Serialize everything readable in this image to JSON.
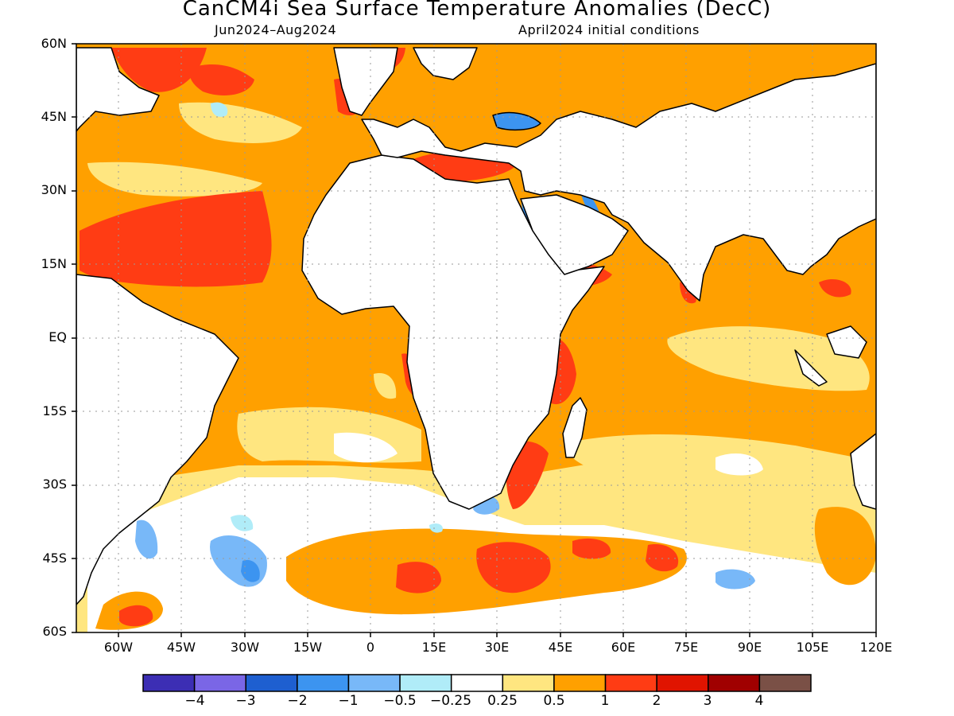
{
  "map": {
    "title": "CanCM4i Sea Surface Temperature Anomalies (DecC)",
    "period": "Jun2024–Aug2024",
    "init": "April2024 initial conditions",
    "lat_labels": [
      "60N",
      "45N",
      "30N",
      "15N",
      "EQ",
      "15S",
      "30S",
      "45S",
      "60S"
    ],
    "lon_labels": [
      "60W",
      "45W",
      "30W",
      "15W",
      "0",
      "15E",
      "30E",
      "45E",
      "60E",
      "75E",
      "90E",
      "105E",
      "120E"
    ],
    "extent": {
      "lon_min": -70,
      "lon_max": 120,
      "lat_min": -60,
      "lat_max": 60
    },
    "colorbar": {
      "colors": [
        "#3c2eb4",
        "#7a66e6",
        "#1e5fd0",
        "#3c94f0",
        "#78b8f8",
        "#b0ecf8",
        "#ffffff",
        "#ffe680",
        "#ffa000",
        "#ff3c14",
        "#e01400",
        "#a00000",
        "#7a5046"
      ],
      "labels": [
        "−4",
        "−3",
        "−2",
        "−1",
        "−0.5",
        "−0.25",
        "0.25",
        "0.5",
        "1",
        "2",
        "3",
        "4"
      ]
    }
  }
}
